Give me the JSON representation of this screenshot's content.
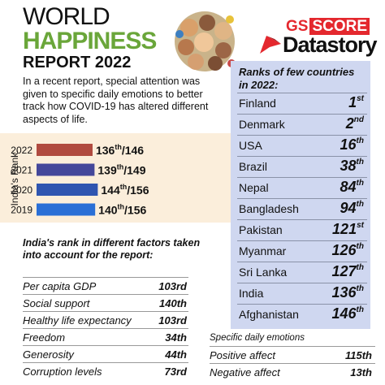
{
  "header": {
    "title_line1": "WORLD",
    "title_line2": "HAPPINESS",
    "title_line3": "REPORT 2022"
  },
  "brand": {
    "gs": "GS",
    "score": "SCORE",
    "datastory": "Datastory",
    "logo_icon": "gs-score-pennant-icon"
  },
  "intro": "In a recent report, special attention was given to specific daily emotions to better track how COVID-19 has altered different aspects of life.",
  "chart_data": {
    "type": "bar",
    "orientation": "horizontal",
    "ylabel": "India's Rank:",
    "categories": [
      "2022",
      "2021",
      "2020",
      "2019"
    ],
    "series": [
      {
        "values": [
          136,
          139,
          144,
          140
        ]
      }
    ],
    "totals": [
      146,
      149,
      156,
      156
    ],
    "data_labels": [
      {
        "rank": "136",
        "suffix": "th",
        "total": "/146"
      },
      {
        "rank": "139",
        "suffix": "th",
        "total": "/149"
      },
      {
        "rank": "144",
        "suffix": "th",
        "total": "/156"
      },
      {
        "rank": "140",
        "suffix": "th",
        "total": "/156"
      }
    ],
    "colors": [
      "#b04a3f",
      "#44479a",
      "#2f55b0",
      "#2a6fd6"
    ],
    "xlim": [
      0,
      156
    ],
    "grid": false,
    "legend": "none"
  },
  "ranks_panel": {
    "title": "Ranks of few countries in 2022:",
    "rows": [
      {
        "country": "Finland",
        "rank": "1",
        "suffix": "st"
      },
      {
        "country": "Denmark",
        "rank": "2",
        "suffix": "nd"
      },
      {
        "country": "USA",
        "rank": "16",
        "suffix": "th"
      },
      {
        "country": "Brazil",
        "rank": "38",
        "suffix": "th"
      },
      {
        "country": "Nepal",
        "rank": "84",
        "suffix": "th"
      },
      {
        "country": "Bangladesh",
        "rank": "94",
        "suffix": "th"
      },
      {
        "country": "Pakistan",
        "rank": "121",
        "suffix": "st"
      },
      {
        "country": "Myanmar",
        "rank": "126",
        "suffix": "th"
      },
      {
        "country": "Sri Lanka",
        "rank": "127",
        "suffix": "th"
      },
      {
        "country": "India",
        "rank": "136",
        "suffix": "th"
      },
      {
        "country": "Afghanistan",
        "rank": "146",
        "suffix": "th"
      }
    ]
  },
  "factors": {
    "title": "India's rank in different factors taken into account for the report:",
    "rows": [
      {
        "name": "Per capita GDP",
        "value": "103rd"
      },
      {
        "name": "Social support",
        "value": "140th"
      },
      {
        "name": "Healthy life expectancy",
        "value": "103rd"
      },
      {
        "name": "Freedom",
        "value": "34th"
      },
      {
        "name": "Generosity",
        "value": "44th"
      },
      {
        "name": "Corruption levels",
        "value": "73rd"
      }
    ]
  },
  "emotions": {
    "title": "Specific daily emotions",
    "rows": [
      {
        "name": "Positive affect",
        "value": "115th"
      },
      {
        "name": "Negative affect",
        "value": "13th"
      }
    ]
  },
  "colors": {
    "green_title": "#6aa63a",
    "brand_red": "#e4282e",
    "panel_blue": "#cfd7f0",
    "chart_band": "#fbeedb"
  }
}
